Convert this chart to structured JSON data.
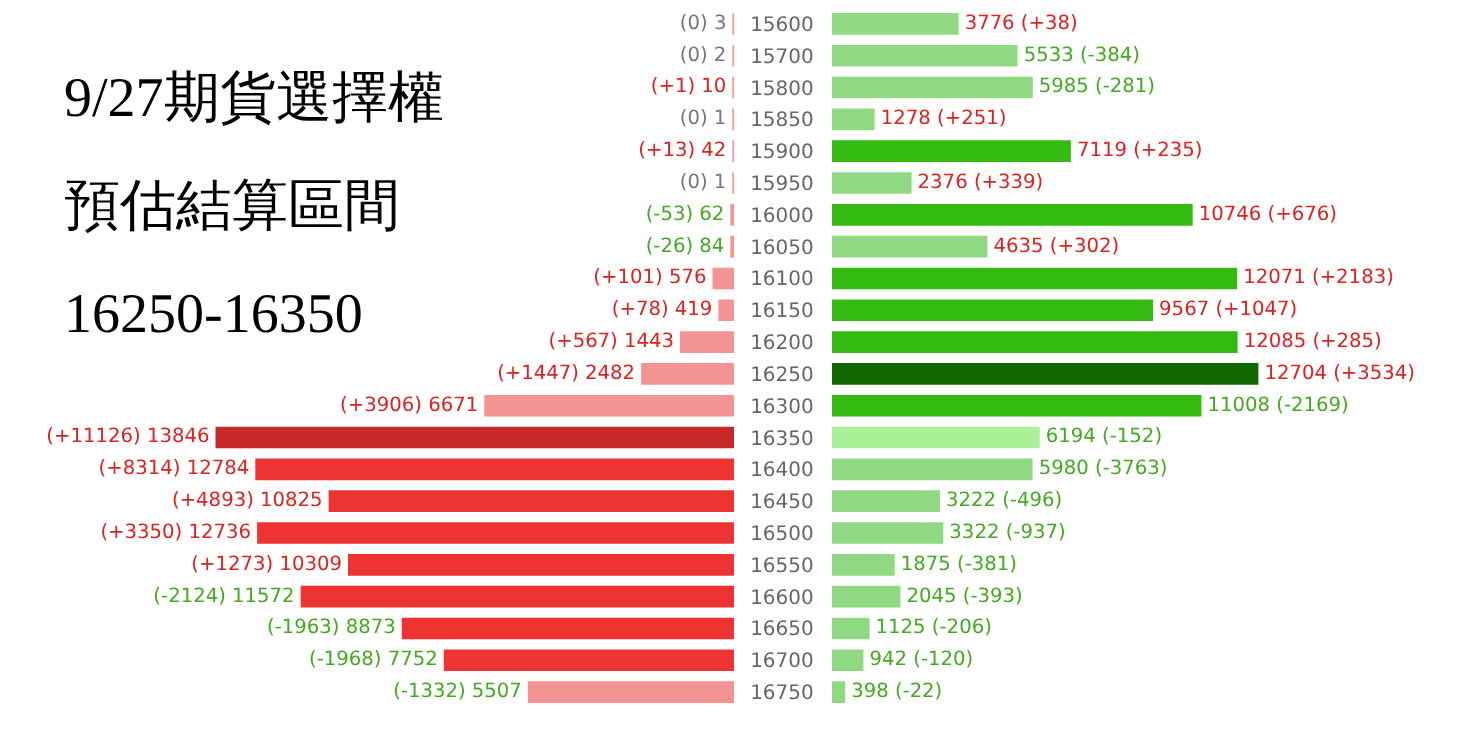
{
  "chart_data": [
    {
      "type": "bar",
      "orientation": "horizontal",
      "title": "9/27期貨選擇權",
      "subtitle": "預估結算區間",
      "annotations": [
        "16250-16350"
      ],
      "tick_labels": false,
      "categories": [
        "15600",
        "15700",
        "15800",
        "15850",
        "15900",
        "15950",
        "16000",
        "16050",
        "16100",
        "16150",
        "16200",
        "16250",
        "16300",
        "16350",
        "16400",
        "16450",
        "16500",
        "16550",
        "16600",
        "16650",
        "16700",
        "16750"
      ],
      "values": [
        3,
        2,
        10,
        1,
        42,
        1,
        62,
        84,
        576,
        419,
        1443,
        2482,
        6671,
        13846,
        12784,
        10825,
        12736,
        10309,
        11572,
        8873,
        7752,
        5507
      ],
      "colors": [
        "#f39393",
        "#f39393",
        "#f39393",
        "#f39393",
        "#f39393",
        "#f39393",
        "#f39393",
        "#f39393",
        "#f39393",
        "#f39393",
        "#f39393",
        "#f39393",
        "#f39393",
        "#c62828",
        "#ee3333",
        "#ee3333",
        "#ee3333",
        "#ee3333",
        "#ee3333",
        "#ee3333",
        "#ee3333",
        "#f39393"
      ],
      "value_labels": [
        "(0) 3",
        "(0) 2",
        "(+1) 10",
        "(0) 1",
        "(+13) 42",
        "(0) 1",
        "(-53) 62",
        "(-26) 84",
        "(+101) 576",
        "(+78) 419",
        "(+567) 1443",
        "(+1447) 2482",
        "(+3906) 6671",
        "(+11126) 13846",
        "(+8314) 12784",
        "(+4893) 10825",
        "(+3350) 12736",
        "(+1273) 10309",
        "(-2124) 11572",
        "(-1963) 8873",
        "(-1968) 7752",
        "(-1332) 5507"
      ]
    },
    {
      "type": "bar",
      "orientation": "horizontal",
      "tick_labels": "y",
      "categories": [
        "15600",
        "15700",
        "15800",
        "15850",
        "15900",
        "15950",
        "16000",
        "16050",
        "16100",
        "16150",
        "16200",
        "16250",
        "16300",
        "16350",
        "16400",
        "16450",
        "16500",
        "16550",
        "16600",
        "16650",
        "16700",
        "16750"
      ],
      "values": [
        3776,
        5533,
        5985,
        1278,
        7119,
        2376,
        10746,
        4635,
        12071,
        9567,
        12085,
        12704,
        11008,
        6194,
        5980,
        3222,
        3322,
        1875,
        2045,
        1125,
        942,
        398
      ],
      "colors": [
        "#8fd982",
        "#8fd982",
        "#8fd982",
        "#8fd982",
        "#33bb11",
        "#8fd982",
        "#33bb11",
        "#8fd982",
        "#33bb11",
        "#33bb11",
        "#33bb11",
        "#116600",
        "#33bb11",
        "#aaf096",
        "#8fd982",
        "#8fd982",
        "#8fd982",
        "#8fd982",
        "#8fd982",
        "#8fd982",
        "#8fd982",
        "#8fd982"
      ],
      "value_labels": [
        "3776 (+38)",
        "5533 (-384)",
        "5985 (-281)",
        "1278 (+251)",
        "7119 (+235)",
        "2376 (+339)",
        "10746 (+676)",
        "4635 (+302)",
        "12071 (+2183)",
        "9567 (+1047)",
        "12085 (+285)",
        "12704 (+3534)",
        "11008 (-2169)",
        "6194 (-152)",
        "5980 (-3763)",
        "3222 (-496)",
        "3322 (-937)",
        "1875 (-381)",
        "2045 (-393)",
        "1125 (-206)",
        "942 (-120)",
        "398 (-22)"
      ]
    }
  ]
}
